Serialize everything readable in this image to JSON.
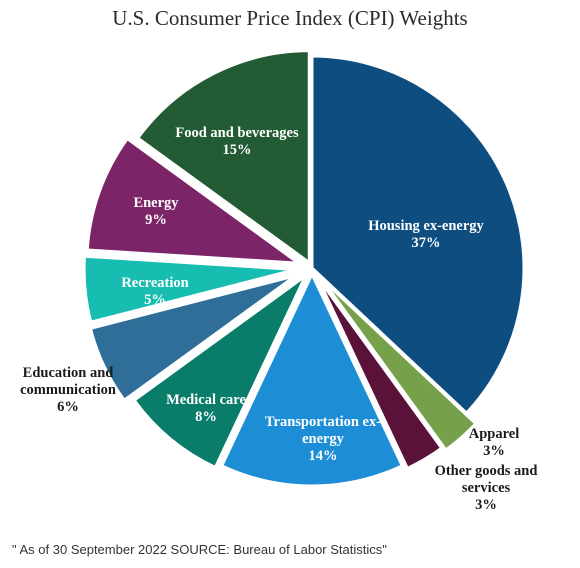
{
  "chart_data": {
    "type": "pie",
    "title": "U.S. Consumer Price Index (CPI) Weights",
    "slices": [
      {
        "name": "Housing ex-energy",
        "value": 37,
        "value_label": "37%",
        "color": "#0e4d80",
        "label_color": "#ffffff"
      },
      {
        "name": "Apparel",
        "value": 3,
        "value_label": "3%",
        "color": "#77a04a",
        "label_color": "#1a1a1a"
      },
      {
        "name": "Other goods and services",
        "value": 3,
        "value_label": "3%",
        "color": "#5a1238",
        "label_color": "#1a1a1a"
      },
      {
        "name": "Transportation ex-energy",
        "value": 14,
        "value_label": "14%",
        "color": "#1d8ed6",
        "label_color": "#ffffff"
      },
      {
        "name": "Medical care",
        "value": 8,
        "value_label": "8%",
        "color": "#0a7c6a",
        "label_color": "#ffffff"
      },
      {
        "name": "Education and communication",
        "value": 6,
        "value_label": "6%",
        "color": "#2f6e98",
        "label_color": "#1a1a1a"
      },
      {
        "name": "Recreation",
        "value": 5,
        "value_label": "5%",
        "color": "#18bdb2",
        "label_color": "#ffffff"
      },
      {
        "name": "Energy",
        "value": 9,
        "value_label": "9%",
        "color": "#7b2468",
        "label_color": "#ffffff"
      },
      {
        "name": "Food and beverages",
        "value": 15,
        "value_label": "15%",
        "color": "#235c34",
        "label_color": "#ffffff"
      }
    ],
    "start_angle": "12 o'clock",
    "direction": "clockwise",
    "legend": "none"
  },
  "footnote": "\" As of 30 September 2022 SOURCE: Bureau of Labor Statistics\""
}
